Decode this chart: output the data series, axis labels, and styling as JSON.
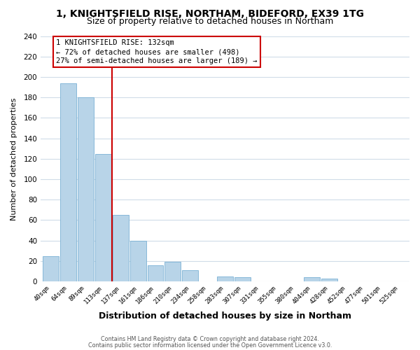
{
  "title1": "1, KNIGHTSFIELD RISE, NORTHAM, BIDEFORD, EX39 1TG",
  "title2": "Size of property relative to detached houses in Northam",
  "xlabel": "Distribution of detached houses by size in Northam",
  "ylabel": "Number of detached properties",
  "bin_labels": [
    "40sqm",
    "64sqm",
    "89sqm",
    "113sqm",
    "137sqm",
    "161sqm",
    "186sqm",
    "210sqm",
    "234sqm",
    "258sqm",
    "283sqm",
    "307sqm",
    "331sqm",
    "355sqm",
    "380sqm",
    "404sqm",
    "428sqm",
    "452sqm",
    "477sqm",
    "501sqm",
    "525sqm"
  ],
  "bar_values": [
    25,
    194,
    180,
    125,
    65,
    40,
    16,
    19,
    11,
    0,
    5,
    4,
    0,
    0,
    0,
    4,
    3,
    0,
    0,
    0,
    0
  ],
  "bar_color": "#b8d4e8",
  "bar_edge_color": "#7ab0d4",
  "vline_color": "#cc0000",
  "annotation_title": "1 KNIGHTSFIELD RISE: 132sqm",
  "annotation_line1": "← 72% of detached houses are smaller (498)",
  "annotation_line2": "27% of semi-detached houses are larger (189) →",
  "annotation_box_color": "#ffffff",
  "annotation_box_edge": "#cc0000",
  "ylim": [
    0,
    240
  ],
  "yticks": [
    0,
    20,
    40,
    60,
    80,
    100,
    120,
    140,
    160,
    180,
    200,
    220,
    240
  ],
  "footer1": "Contains HM Land Registry data © Crown copyright and database right 2024.",
  "footer2": "Contains public sector information licensed under the Open Government Licence v3.0.",
  "bg_color": "#ffffff",
  "grid_color": "#d0dce8",
  "title1_fontsize": 10,
  "title2_fontsize": 9
}
